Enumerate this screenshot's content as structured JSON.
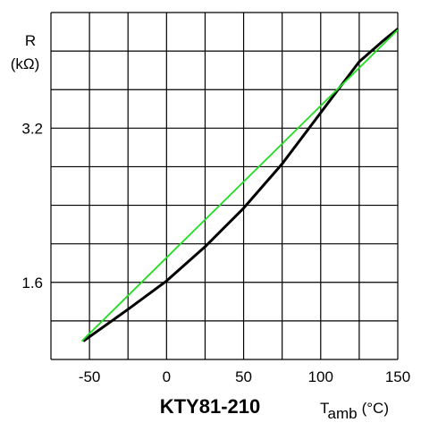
{
  "chart_data": {
    "type": "line",
    "title": "KTY81-210",
    "y_label": [
      "R",
      "(kΩ)"
    ],
    "x_label": {
      "main": "T",
      "sub": "amb",
      "unit": "(°C)"
    },
    "xlim": [
      -75,
      150
    ],
    "ylim": [
      0.8,
      4.4
    ],
    "xticks": [
      -50,
      0,
      50,
      100,
      150
    ],
    "yticks": [
      1.6,
      3.2
    ],
    "xgrid": [
      -75,
      -50,
      -25,
      0,
      25,
      50,
      75,
      100,
      125,
      150
    ],
    "ygrid": [
      0.8,
      1.2,
      1.6,
      2.0,
      2.4,
      2.8,
      3.2,
      3.6,
      4.0,
      4.4
    ],
    "series": [
      {
        "color": "#000000",
        "x": [
          -54,
          -25,
          0,
          25,
          50,
          75,
          100,
          125,
          140,
          150
        ],
        "values": [
          0.99,
          1.32,
          1.615,
          1.97,
          2.37,
          2.83,
          3.36,
          3.89,
          4.1,
          4.23
        ]
      },
      {
        "color": "#22dd22",
        "x": [
          -55,
          150
        ],
        "values": [
          0.99,
          4.22
        ]
      }
    ]
  }
}
